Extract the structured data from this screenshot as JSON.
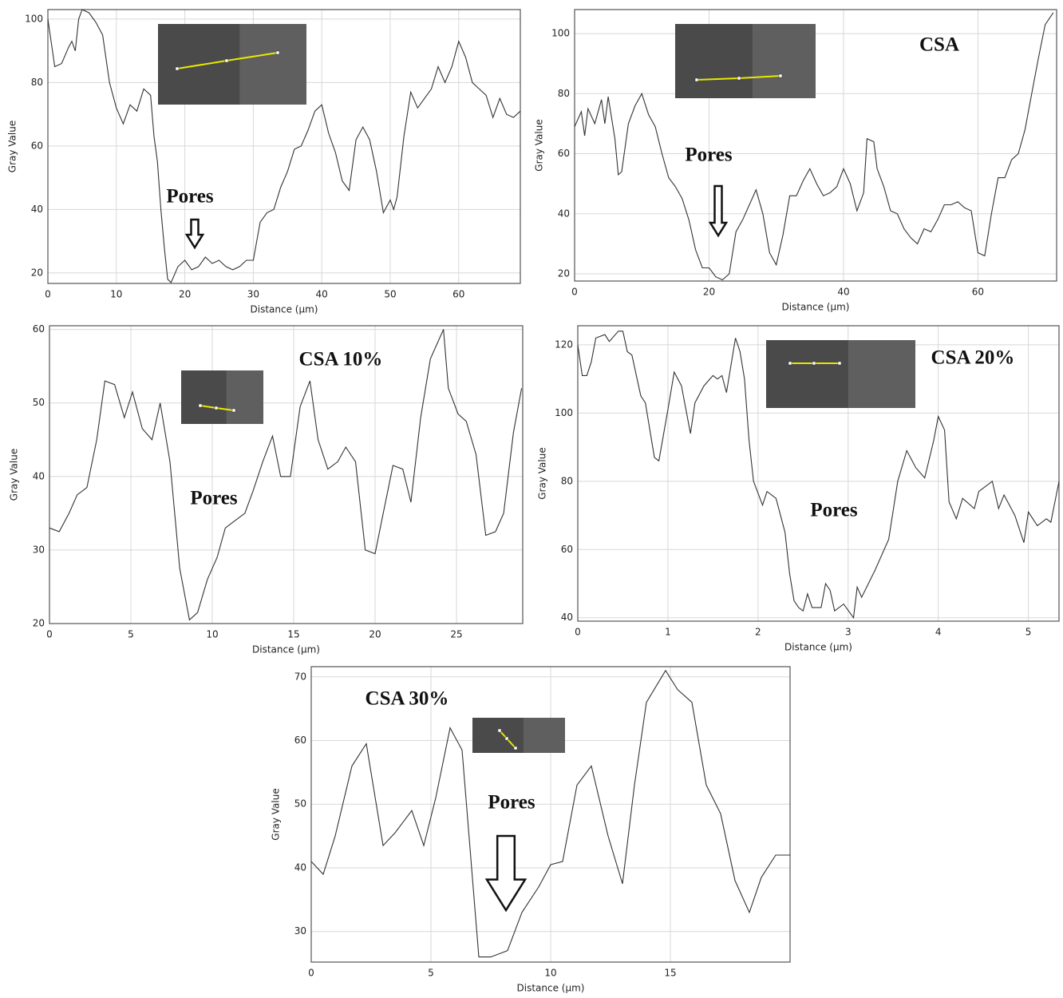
{
  "chart_data": [
    {
      "type": "line",
      "x_label": "Distance (µm)",
      "y_label": "Gray Value",
      "color": "#333333",
      "grid": true,
      "annotations": [
        "Pores"
      ],
      "xlim": [
        0,
        69
      ],
      "ylim": [
        16.7,
        103
      ],
      "xticks": [
        0,
        10,
        20,
        30,
        40,
        50,
        60
      ],
      "yticks": [
        20,
        40,
        60,
        80,
        100
      ],
      "x": [
        0,
        1,
        2,
        3,
        3.5,
        4,
        4.5,
        5,
        6,
        7,
        8,
        9,
        10,
        11,
        12,
        13,
        14,
        15,
        15.5,
        16,
        16.5,
        17,
        17.5,
        18,
        19,
        20,
        21,
        22,
        23,
        24,
        25,
        26,
        27,
        28,
        29,
        30,
        31,
        32,
        33,
        34,
        35,
        36,
        37,
        38,
        39,
        40,
        41,
        42,
        43,
        44,
        45,
        46,
        47,
        48,
        49,
        50,
        50.5,
        51,
        52,
        53,
        54,
        55,
        56,
        57,
        58,
        59,
        60,
        61,
        62,
        63,
        64,
        65,
        66,
        67,
        68,
        69
      ],
      "values": [
        100,
        85,
        86,
        91,
        93,
        90,
        100,
        103,
        102,
        99,
        95,
        80,
        72,
        67,
        73,
        71,
        78,
        76,
        63,
        55,
        40,
        28,
        18,
        17,
        22,
        24,
        21,
        22,
        25,
        23,
        24,
        22,
        21,
        22,
        24,
        24,
        36,
        39,
        40,
        47,
        52,
        59,
        60,
        65,
        71,
        73,
        64,
        58,
        49,
        46,
        62,
        66,
        62,
        52,
        39,
        43,
        40,
        44,
        63,
        77,
        72,
        75,
        78,
        85,
        80,
        85,
        93,
        88,
        80,
        78,
        76,
        69,
        75,
        70,
        69,
        71
      ]
    },
    {
      "type": "line",
      "x_label": "Distance (µm)",
      "y_label": "Gray Value",
      "color": "#333333",
      "grid": true,
      "annotations": [
        "CSA",
        "Pores"
      ],
      "xlim": [
        0,
        71.7
      ],
      "ylim": [
        17.6,
        108
      ],
      "xticks": [
        0,
        20,
        40,
        60
      ],
      "yticks": [
        20,
        40,
        60,
        80,
        100
      ],
      "x": [
        0,
        1,
        1.5,
        2,
        3,
        4,
        4.5,
        5,
        6,
        6.5,
        7,
        8,
        9,
        10,
        11,
        12,
        13,
        14,
        15,
        16,
        17,
        18,
        19,
        20,
        21,
        22,
        23,
        24,
        25,
        26,
        27,
        28,
        29,
        30,
        31,
        32,
        33,
        34,
        35,
        36,
        37,
        38,
        39,
        40,
        41,
        42,
        43,
        43.5,
        44.5,
        45,
        46,
        47,
        48,
        49,
        50,
        51,
        52,
        53,
        54,
        55,
        56,
        57,
        58,
        59,
        60,
        61,
        62,
        63,
        64,
        65,
        66,
        67,
        68,
        69,
        70,
        71.2
      ],
      "values": [
        69,
        74,
        66,
        75,
        70,
        78,
        70,
        79,
        65,
        53,
        54,
        70,
        76,
        80,
        73,
        69,
        60,
        52,
        49,
        45,
        38,
        28,
        22,
        22,
        19,
        18,
        20,
        34,
        38,
        43,
        48,
        40,
        27,
        23,
        33,
        46,
        46,
        51,
        55,
        50,
        46,
        47,
        49,
        55,
        50,
        41,
        47,
        65,
        64,
        55,
        49,
        41,
        40,
        35,
        32,
        30,
        35,
        34,
        38,
        43,
        43,
        44,
        42,
        41,
        27,
        26,
        40,
        52,
        52,
        58,
        60,
        68,
        80,
        92,
        103,
        107
      ]
    },
    {
      "type": "line",
      "x_label": "Distance (µm)",
      "y_label": "Gray Value",
      "color": "#333333",
      "grid": true,
      "annotations": [
        "CSA 10%",
        "Pores"
      ],
      "xlim": [
        0,
        29.07
      ],
      "ylim": [
        20,
        60.5
      ],
      "xticks": [
        0,
        5,
        10,
        15,
        20,
        25
      ],
      "yticks": [
        20,
        30,
        40,
        50,
        60
      ],
      "x": [
        0,
        0.6,
        1.2,
        1.7,
        2.3,
        2.9,
        3.4,
        4,
        4.6,
        5.1,
        5.7,
        6.3,
        6.8,
        7.4,
        8,
        8.6,
        9.1,
        9.7,
        10.3,
        10.8,
        11.4,
        12,
        12.5,
        13.1,
        13.7,
        14.2,
        14.8,
        15.4,
        16,
        16.5,
        17.1,
        17.7,
        18.2,
        18.8,
        19.4,
        20,
        20.5,
        21.1,
        21.7,
        22.2,
        22.8,
        23.4,
        24.2,
        24.5,
        25.1,
        25.6,
        26.2,
        26.8,
        27.4,
        27.9,
        28.5,
        29
      ],
      "values": [
        33,
        32.5,
        35,
        37.5,
        38.5,
        45,
        53,
        52.5,
        48,
        51.5,
        46.5,
        45,
        50,
        42,
        27.5,
        20.5,
        21.5,
        26,
        29,
        33,
        34,
        35,
        38,
        42,
        45.5,
        40,
        40,
        49.5,
        53,
        45,
        41,
        42,
        44,
        42,
        30,
        29.5,
        35,
        41.5,
        41,
        36.5,
        48,
        56,
        60,
        52,
        48.5,
        47.5,
        43,
        32,
        32.5,
        35,
        46,
        52
      ]
    },
    {
      "type": "line",
      "x_label": "Distance (µm)",
      "y_label": "Gray Value",
      "color": "#333333",
      "grid": true,
      "annotations": [
        "CSA 20%",
        "Pores"
      ],
      "xlim": [
        0,
        5.34
      ],
      "ylim": [
        39,
        125.6
      ],
      "xticks": [
        0,
        1,
        2,
        3,
        4,
        5
      ],
      "yticks": [
        40,
        60,
        80,
        100,
        120
      ],
      "x": [
        0,
        0.05,
        0.1,
        0.15,
        0.2,
        0.3,
        0.35,
        0.45,
        0.5,
        0.55,
        0.6,
        0.7,
        0.75,
        0.85,
        0.9,
        1,
        1.07,
        1.15,
        1.25,
        1.3,
        1.4,
        1.5,
        1.55,
        1.6,
        1.65,
        1.75,
        1.8,
        1.85,
        1.9,
        1.95,
        2.05,
        2.1,
        2.15,
        2.2,
        2.3,
        2.35,
        2.4,
        2.45,
        2.5,
        2.55,
        2.6,
        2.7,
        2.75,
        2.8,
        2.85,
        2.95,
        3.06,
        3.1,
        3.15,
        3.3,
        3.45,
        3.55,
        3.65,
        3.75,
        3.85,
        3.95,
        4,
        4.07,
        4.12,
        4.2,
        4.27,
        4.4,
        4.45,
        4.6,
        4.67,
        4.73,
        4.85,
        4.95,
        5,
        5.1,
        5.2,
        5.25,
        5.34
      ],
      "values": [
        120,
        111,
        111,
        115,
        122,
        123,
        121,
        124,
        124,
        118,
        117,
        105,
        103,
        87,
        86,
        101,
        112,
        108,
        94,
        103,
        108,
        111,
        110,
        111,
        106,
        122,
        118,
        110,
        92,
        80,
        73,
        77,
        76,
        75,
        65,
        53,
        45,
        43,
        42,
        47,
        43,
        43,
        50,
        48,
        42,
        44,
        40,
        49,
        46,
        54,
        63,
        80,
        89,
        84,
        81,
        92,
        99,
        95,
        74,
        69,
        75,
        72,
        77,
        80,
        72,
        76,
        70,
        62,
        71,
        67,
        69,
        68,
        80
      ]
    },
    {
      "type": "line",
      "x_label": "Distance (µm)",
      "y_label": "Gray Value",
      "color": "#333333",
      "grid": true,
      "annotations": [
        "CSA 30%",
        "Pores"
      ],
      "xlim": [
        0,
        20
      ],
      "ylim": [
        25.2,
        71.6
      ],
      "xticks": [
        0,
        5,
        10,
        15
      ],
      "yticks": [
        30,
        40,
        50,
        60,
        70
      ],
      "x": [
        0,
        0.5,
        1,
        1.7,
        2.3,
        3,
        3.5,
        4.2,
        4.7,
        5.2,
        5.8,
        6.3,
        7,
        7.5,
        8.2,
        8.8,
        9.5,
        10,
        10.5,
        11.1,
        11.7,
        12.4,
        13,
        13.5,
        14,
        14.8,
        15.3,
        15.9,
        16.5,
        17.1,
        17.7,
        18.3,
        18.8,
        19.4,
        20
      ],
      "values": [
        41,
        39,
        45,
        56,
        59.5,
        43.5,
        45.5,
        49,
        43.5,
        51,
        62,
        58.5,
        26,
        26,
        27,
        33,
        37,
        40.5,
        41,
        53,
        56,
        45,
        37.5,
        53,
        66,
        71,
        68,
        66,
        53,
        48.5,
        38,
        33,
        38.5,
        42,
        42
      ]
    }
  ]
}
